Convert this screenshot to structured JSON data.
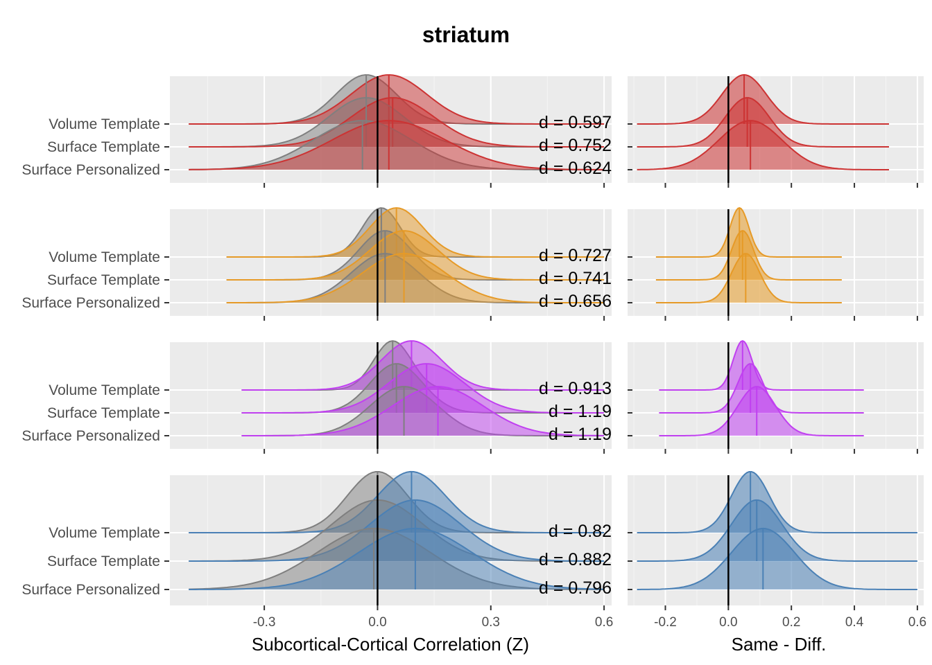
{
  "chart_data": {
    "type": "ridgeline",
    "title": "striatum",
    "row_labels": [
      "Volume Template",
      "Surface Template",
      "Surface Personalized"
    ],
    "left_panel": {
      "xlabel": "Subcortical-Cortical Correlation (Z)",
      "xlim": [
        -0.55,
        0.62
      ],
      "ticks": [
        -0.3,
        0.0,
        0.3,
        0.6
      ],
      "tick_labels": [
        "-0.3",
        "0.0",
        "0.3",
        "0.6"
      ],
      "reference_line": 0
    },
    "right_panel": {
      "xlabel": "Same - Diff.",
      "xlim": [
        -0.32,
        0.62
      ],
      "ticks": [
        -0.2,
        0.0,
        0.2,
        0.4,
        0.6
      ],
      "tick_labels": [
        "-0.2",
        "0.0",
        "0.2",
        "0.4",
        "0.6"
      ],
      "reference_line": 0
    },
    "comparison_color": "#7f7f7f",
    "groups": [
      {
        "color": "#cc3333",
        "rows": [
          {
            "label": "Volume Template",
            "diff_mean": -0.03,
            "diff_sd": 0.08,
            "same_mean": 0.03,
            "same_sd": 0.1,
            "x_range": [
              -0.5,
              0.6
            ],
            "effect": "d = 0.597",
            "diff_score_mean": 0.05,
            "diff_score_sd": 0.07,
            "diff_score_range": [
              -0.29,
              0.51
            ]
          },
          {
            "label": "Surface Template",
            "diff_mean": -0.03,
            "diff_sd": 0.1,
            "same_mean": 0.04,
            "same_sd": 0.11,
            "x_range": [
              -0.5,
              0.6
            ],
            "effect": "d = 0.752",
            "diff_score_mean": 0.06,
            "diff_score_sd": 0.07,
            "diff_score_range": [
              -0.29,
              0.51
            ]
          },
          {
            "label": "Surface Personalized",
            "diff_mean": -0.04,
            "diff_sd": 0.13,
            "same_mean": 0.03,
            "same_sd": 0.15,
            "x_range": [
              -0.5,
              0.6
            ],
            "effect": "d = 0.624",
            "diff_score_mean": 0.07,
            "diff_score_sd": 0.1,
            "diff_score_range": [
              -0.29,
              0.51
            ]
          }
        ]
      },
      {
        "color": "#e69a27",
        "rows": [
          {
            "label": "Volume Template",
            "diff_mean": 0.01,
            "diff_sd": 0.05,
            "same_mean": 0.05,
            "same_sd": 0.07,
            "x_range": [
              -0.4,
              0.6
            ],
            "effect": "d = 0.727",
            "diff_score_mean": 0.035,
            "diff_score_sd": 0.03,
            "diff_score_range": [
              -0.23,
              0.36
            ]
          },
          {
            "label": "Surface Template",
            "diff_mean": 0.02,
            "diff_sd": 0.07,
            "same_mean": 0.07,
            "same_sd": 0.09,
            "x_range": [
              -0.4,
              0.6
            ],
            "effect": "d = 0.741",
            "diff_score_mean": 0.045,
            "diff_score_sd": 0.035,
            "diff_score_range": [
              -0.23,
              0.36
            ]
          },
          {
            "label": "Surface Personalized",
            "diff_mean": 0.02,
            "diff_sd": 0.09,
            "same_mean": 0.07,
            "same_sd": 0.11,
            "x_range": [
              -0.4,
              0.6
            ],
            "effect": "d = 0.656",
            "diff_score_mean": 0.055,
            "diff_score_sd": 0.045,
            "diff_score_range": [
              -0.23,
              0.36
            ]
          }
        ]
      },
      {
        "color": "#c040f0",
        "rows": [
          {
            "label": "Volume Template",
            "diff_mean": 0.04,
            "diff_sd": 0.05,
            "same_mean": 0.09,
            "same_sd": 0.08,
            "x_range": [
              -0.36,
              0.6
            ],
            "effect": "d = 0.913",
            "diff_score_mean": 0.045,
            "diff_score_sd": 0.03,
            "diff_score_range": [
              -0.22,
              0.43
            ]
          },
          {
            "label": "Surface Template",
            "diff_mean": 0.05,
            "diff_sd": 0.07,
            "same_mean": 0.13,
            "same_sd": 0.1,
            "x_range": [
              -0.36,
              0.6
            ],
            "effect": "d = 1.19",
            "diff_score_mean": 0.07,
            "diff_score_sd": 0.04,
            "diff_score_range": [
              -0.22,
              0.43
            ]
          },
          {
            "label": "Surface Personalized",
            "diff_mean": 0.07,
            "diff_sd": 0.09,
            "same_mean": 0.16,
            "same_sd": 0.12,
            "x_range": [
              -0.36,
              0.6
            ],
            "effect": "d = 1.19",
            "diff_score_mean": 0.09,
            "diff_score_sd": 0.06,
            "diff_score_range": [
              -0.22,
              0.43
            ]
          }
        ]
      },
      {
        "color": "#4a80b5",
        "rows": [
          {
            "label": "Volume Template",
            "diff_mean": 0.0,
            "diff_sd": 0.08,
            "same_mean": 0.09,
            "same_sd": 0.09,
            "x_range": [
              -0.5,
              0.6
            ],
            "effect": "d = 0.82",
            "diff_score_mean": 0.07,
            "diff_score_sd": 0.06,
            "diff_score_range": [
              -0.29,
              0.6
            ]
          },
          {
            "label": "Surface Template",
            "diff_mean": 0.0,
            "diff_sd": 0.12,
            "same_mean": 0.1,
            "same_sd": 0.12,
            "x_range": [
              -0.5,
              0.6
            ],
            "effect": "d = 0.882",
            "diff_score_mean": 0.09,
            "diff_score_sd": 0.08,
            "diff_score_range": [
              -0.29,
              0.6
            ]
          },
          {
            "label": "Surface Personalized",
            "diff_mean": -0.01,
            "diff_sd": 0.15,
            "same_mean": 0.1,
            "same_sd": 0.15,
            "x_range": [
              -0.5,
              0.6
            ],
            "effect": "d = 0.796",
            "diff_score_mean": 0.11,
            "diff_score_sd": 0.1,
            "diff_score_range": [
              -0.29,
              0.6
            ]
          }
        ]
      }
    ]
  }
}
